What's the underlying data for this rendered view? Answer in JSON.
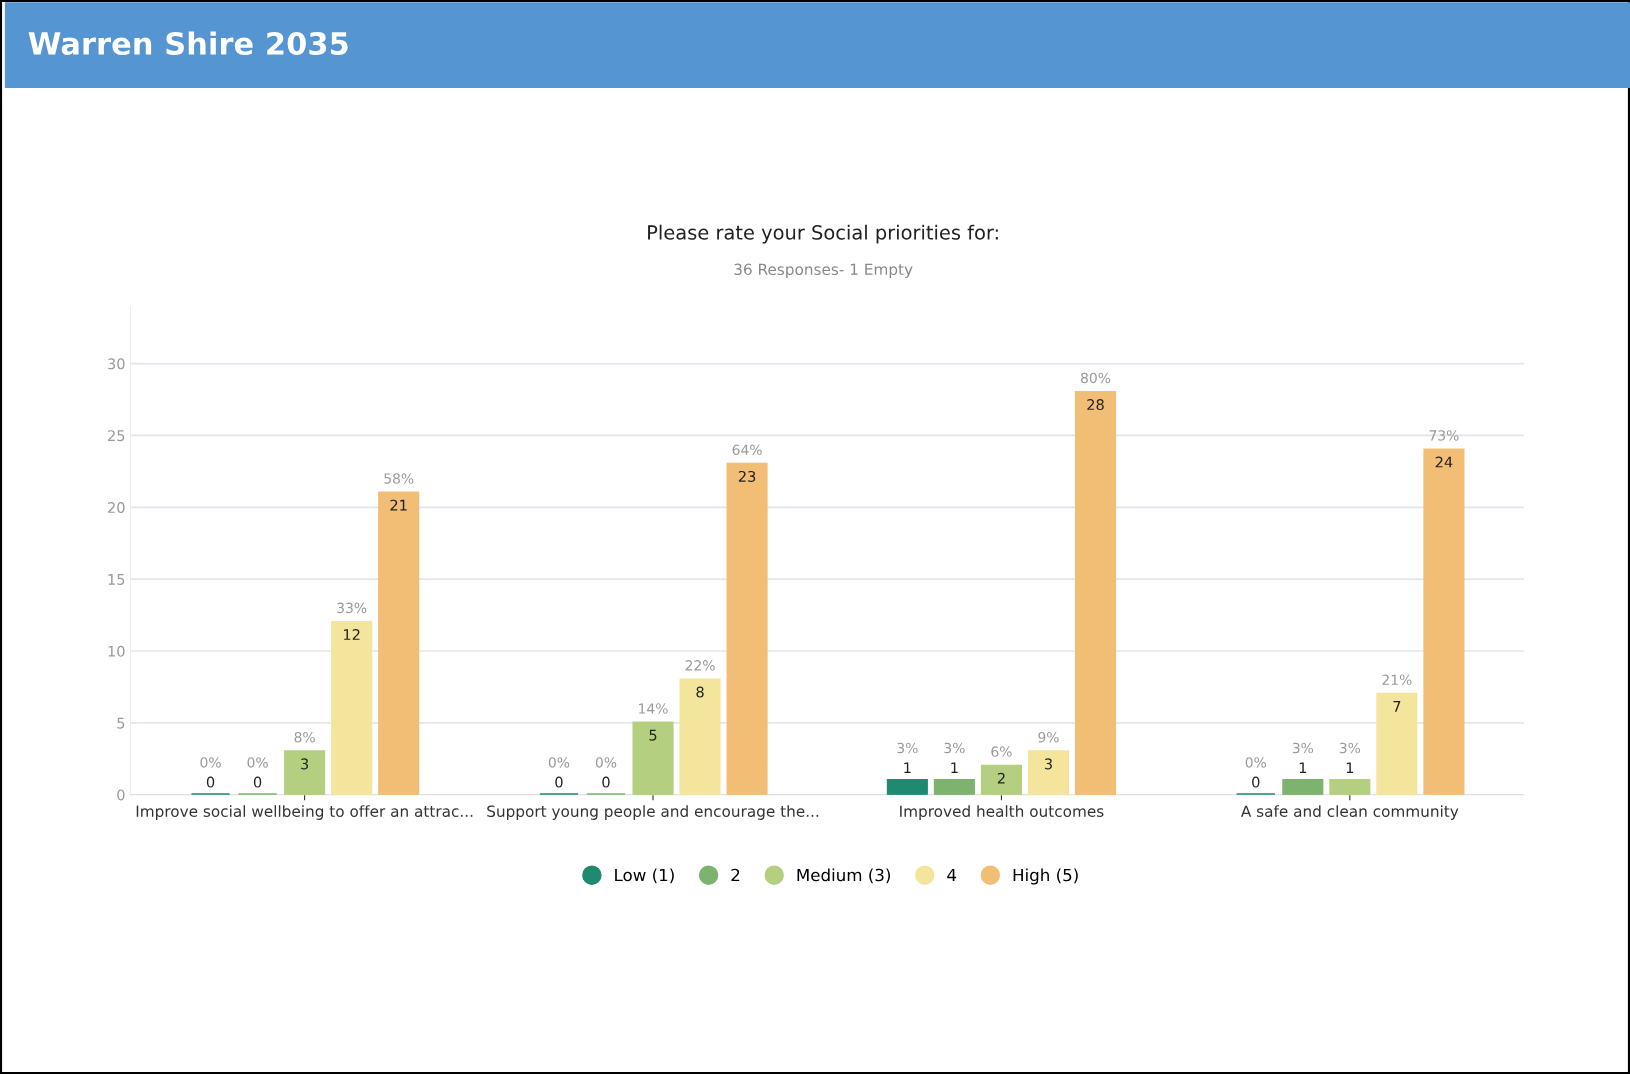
{
  "chart_data": {
    "type": "bar",
    "title": "Warren Shire 2035",
    "subtitle": "Please rate your Social priorities for:",
    "annotations": [
      "36 Responses- 1 Empty",
      "0%",
      "0%",
      "8%",
      "33%",
      "58%",
      "0%",
      "0%",
      "14%",
      "22%",
      "64%",
      "3%",
      "3%",
      "6%",
      "9%",
      "80%",
      "0%",
      "3%",
      "3%",
      "21%",
      "73%"
    ],
    "categories": [
      "Improve social wellbeing to offer an attrac...",
      "Support young people and encourage the...",
      "Improved health outcomes",
      "A safe and clean community"
    ],
    "series": [
      {
        "name": "Low (1)",
        "color": "#1f8a70",
        "values": [
          0,
          0,
          1,
          0
        ]
      },
      {
        "name": "2",
        "color": "#7db36f",
        "values": [
          0,
          0,
          1,
          1
        ]
      },
      {
        "name": "Medium (3)",
        "color": "#b5cf80",
        "values": [
          3,
          5,
          2,
          1
        ]
      },
      {
        "name": "4",
        "color": "#f3e59b",
        "values": [
          12,
          8,
          3,
          7
        ]
      },
      {
        "name": "High (5)",
        "color": "#f2bd75",
        "values": [
          21,
          23,
          28,
          24
        ]
      }
    ],
    "ylim": [
      0,
      34
    ],
    "yticks": [
      0,
      5,
      10,
      15,
      20,
      25,
      30
    ],
    "grid": "y",
    "legend": "bottom",
    "data_labels": true
  }
}
